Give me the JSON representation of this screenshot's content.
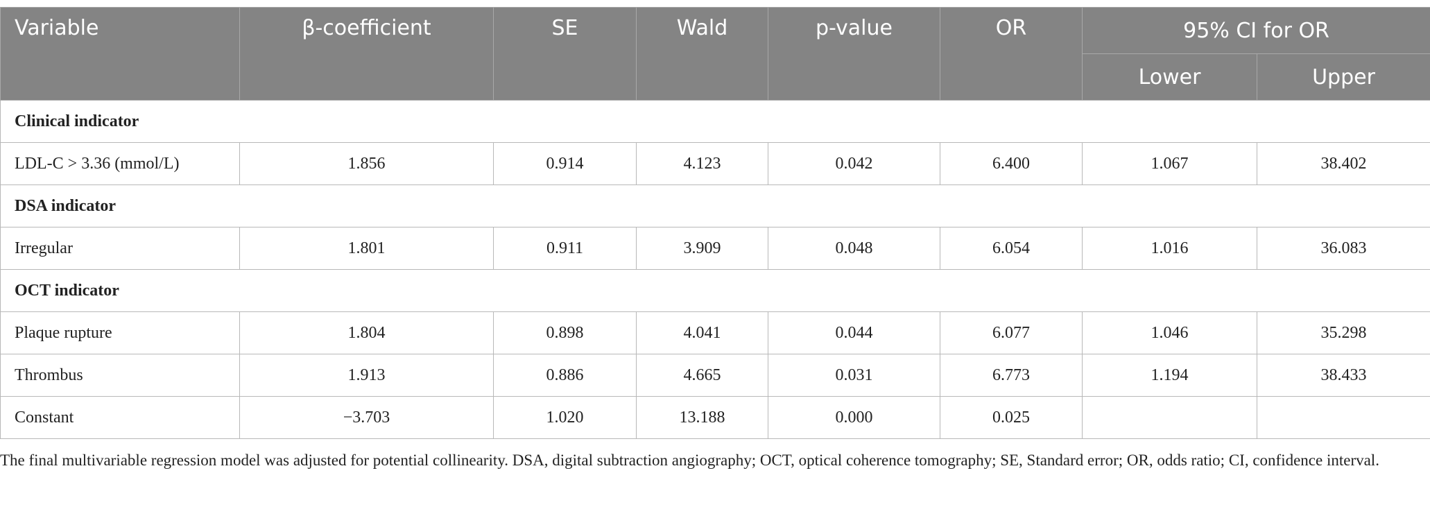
{
  "table": {
    "header": {
      "columns": [
        "Variable",
        "β-coefficient",
        "SE",
        "Wald",
        "p-value",
        "OR"
      ],
      "group": "95% CI for OR",
      "subcolumns": [
        "Lower",
        "Upper"
      ]
    },
    "rows": [
      {
        "section": "Clinical indicator"
      },
      {
        "cells": [
          "LDL-C > 3.36 (mmol/L)",
          "1.856",
          "0.914",
          "4.123",
          "0.042",
          "6.400",
          "1.067",
          "38.402"
        ]
      },
      {
        "section": "DSA indicator"
      },
      {
        "cells": [
          "Irregular",
          "1.801",
          "0.911",
          "3.909",
          "0.048",
          "6.054",
          "1.016",
          "36.083"
        ]
      },
      {
        "section": "OCT indicator"
      },
      {
        "cells": [
          "Plaque rupture",
          "1.804",
          "0.898",
          "4.041",
          "0.044",
          "6.077",
          "1.046",
          "35.298"
        ]
      },
      {
        "cells": [
          "Thrombus",
          "1.913",
          "0.886",
          "4.665",
          "0.031",
          "6.773",
          "1.194",
          "38.433"
        ]
      },
      {
        "cells": [
          "Constant",
          "−3.703",
          "1.020",
          "13.188",
          "0.000",
          "0.025"
        ]
      }
    ]
  },
  "footnote": "The final multivariable regression model was adjusted for potential collinearity. DSA, digital subtraction angiography; OCT, optical coherence tomography; SE, Standard error; OR, odds ratio; CI, confidence interval."
}
